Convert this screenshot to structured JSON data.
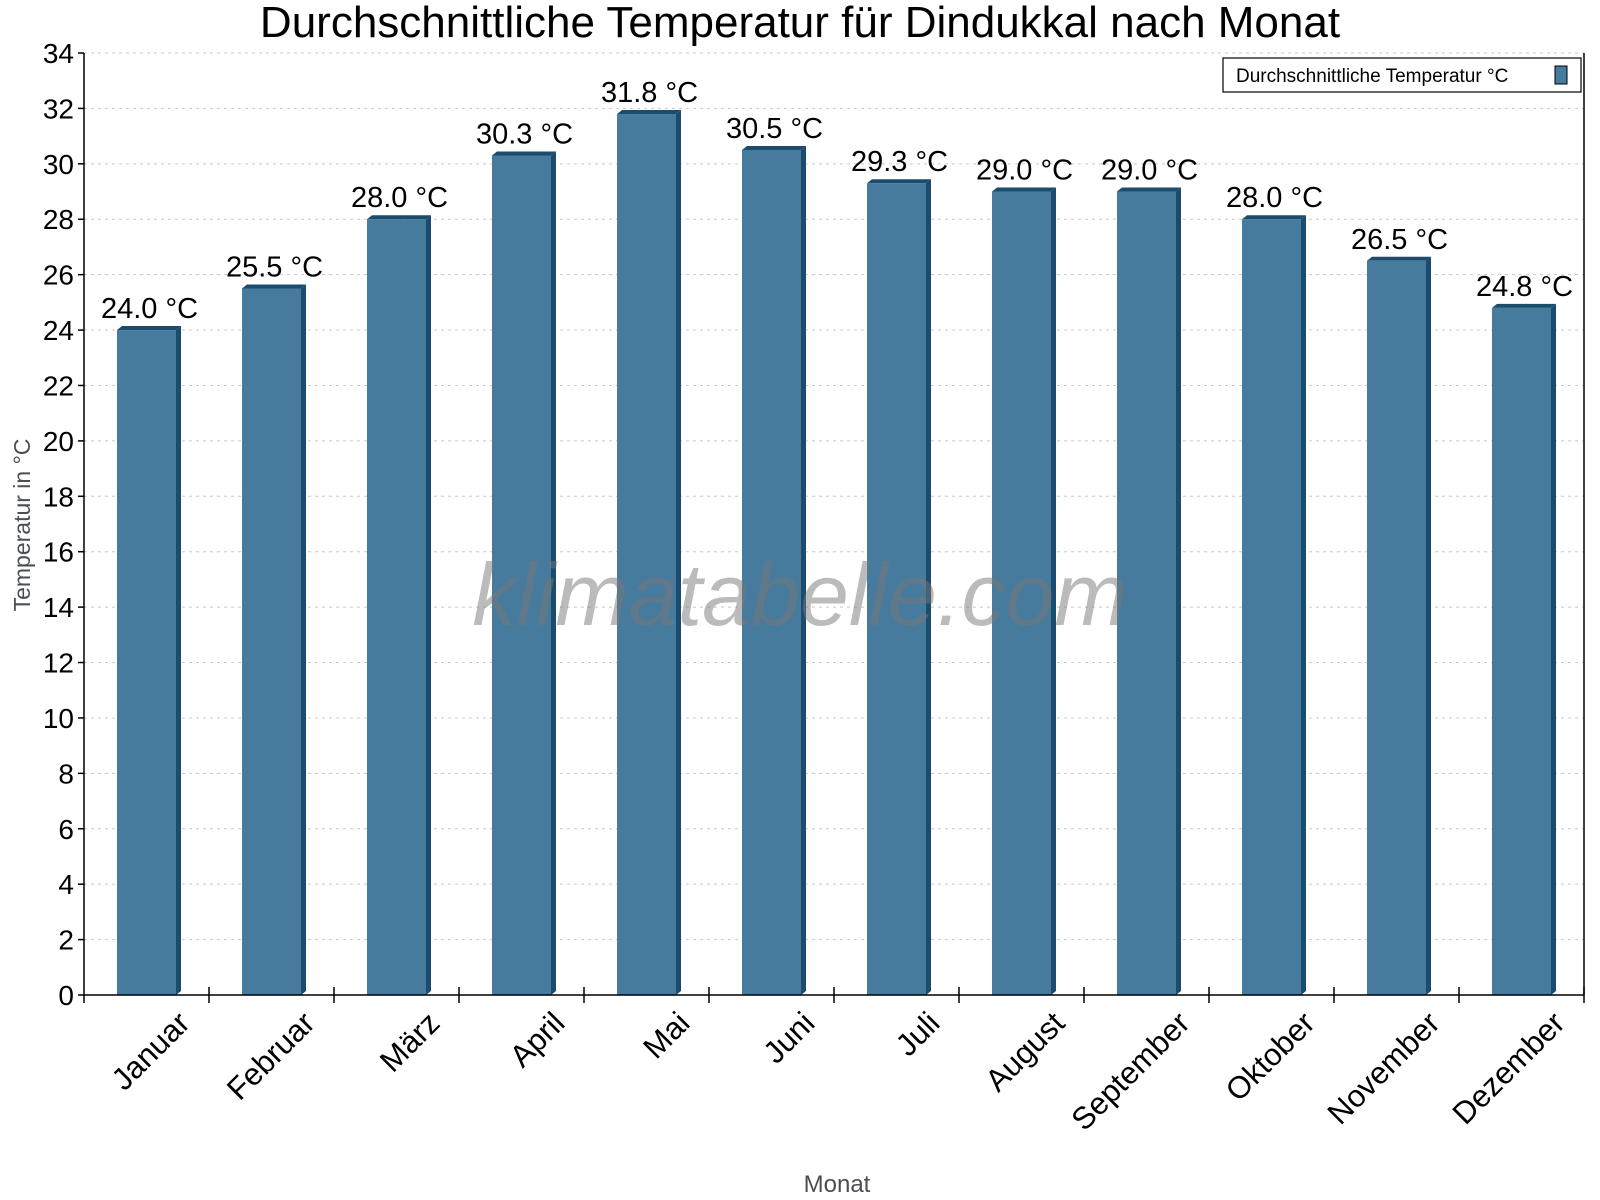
{
  "chart_data": {
    "type": "bar",
    "title": "Durchschnittliche Temperatur für Dindukkal nach Monat",
    "xlabel": "Monat",
    "ylabel": "Temperatur in °C",
    "categories": [
      "Januar",
      "Februar",
      "März",
      "April",
      "Mai",
      "Juni",
      "Juli",
      "August",
      "September",
      "Oktober",
      "November",
      "Dezember"
    ],
    "series": [
      {
        "name": "Durchschnittliche Temperatur °C",
        "values": [
          24.0,
          25.5,
          28.0,
          30.3,
          31.8,
          30.5,
          29.3,
          29.0,
          29.0,
          28.0,
          26.5,
          24.8
        ],
        "labels": [
          "24.0 °C",
          "25.5 °C",
          "28.0 °C",
          "30.3 °C",
          "31.8 °C",
          "30.5 °C",
          "29.3 °C",
          "29.0 °C",
          "29.0 °C",
          "28.0 °C",
          "26.5 °C",
          "24.8 °C"
        ]
      }
    ],
    "ylim": [
      0,
      34
    ],
    "yticks": [
      0,
      2,
      4,
      6,
      8,
      10,
      12,
      14,
      16,
      18,
      20,
      22,
      24,
      26,
      28,
      30,
      32,
      34
    ],
    "grid": true,
    "legend": "top-right",
    "colors": {
      "bar": "#467b9d",
      "bar_side": "#1b4c6d"
    }
  },
  "watermark": "klimatabelle.com"
}
